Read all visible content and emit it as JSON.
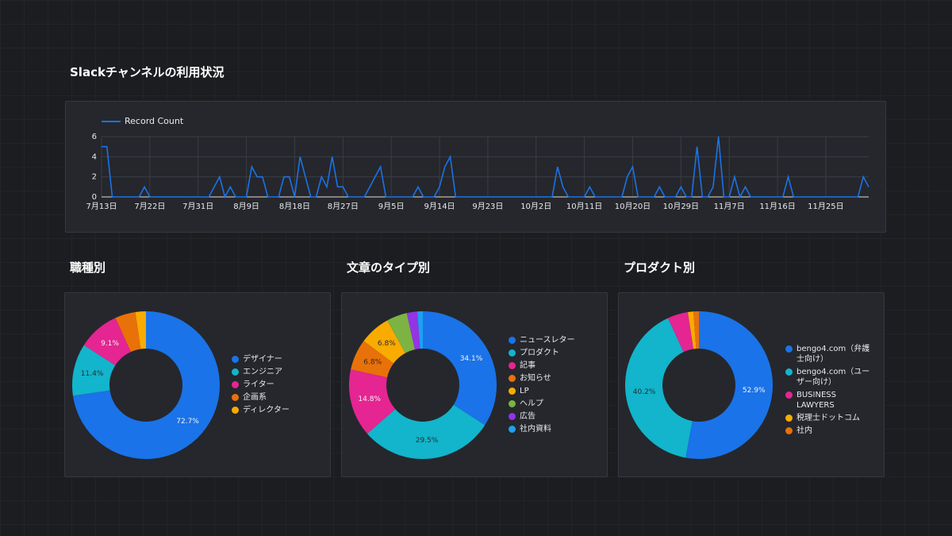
{
  "chart_data": [
    {
      "type": "line",
      "title": "Slackチャンネルの利用状況",
      "categories": [
        "7月13日",
        null,
        null,
        null,
        null,
        null,
        null,
        null,
        null,
        "7月22日",
        null,
        null,
        null,
        null,
        null,
        null,
        null,
        null,
        "7月31日",
        null,
        null,
        null,
        null,
        null,
        null,
        null,
        null,
        "8月9日",
        null,
        null,
        null,
        null,
        null,
        null,
        null,
        null,
        "8月18日",
        null,
        null,
        null,
        null,
        null,
        null,
        null,
        null,
        "8月27日",
        null,
        null,
        null,
        null,
        null,
        null,
        null,
        null,
        "9月5日",
        null,
        null,
        null,
        null,
        null,
        null,
        null,
        null,
        "9月14日",
        null,
        null,
        null,
        null,
        null,
        null,
        null,
        null,
        "9月23日",
        null,
        null,
        null,
        null,
        null,
        null,
        null,
        null,
        "10月2日",
        null,
        null,
        null,
        null,
        null,
        null,
        null,
        null,
        "10月11日",
        null,
        null,
        null,
        null,
        null,
        null,
        null,
        null,
        "10月20日",
        null,
        null,
        null,
        null,
        null,
        null,
        null,
        null,
        "10月29日",
        null,
        null,
        null,
        null,
        null,
        null,
        null,
        null,
        "11月7日",
        null,
        null,
        null,
        null,
        null,
        null,
        null,
        null,
        "11月16日",
        null,
        null,
        null,
        null,
        null,
        null,
        null,
        null,
        "11月25日",
        null,
        null,
        null,
        null,
        null,
        null,
        null,
        null
      ],
      "series": [
        {
          "name": "Record Count",
          "color": "#1a73e8",
          "values": [
            5,
            5,
            0,
            0,
            0,
            0,
            0,
            0,
            1,
            0,
            0,
            0,
            0,
            0,
            0,
            0,
            0,
            0,
            0,
            0,
            0,
            1,
            2,
            0,
            1,
            0,
            0,
            0,
            3,
            2,
            2,
            0,
            0,
            0,
            2,
            2,
            0,
            4,
            2,
            0,
            0,
            2,
            1,
            4,
            1,
            1,
            0,
            0,
            0,
            0,
            1,
            2,
            3,
            0,
            0,
            0,
            0,
            0,
            0,
            1,
            0,
            0,
            0,
            1,
            3,
            4,
            0,
            0,
            0,
            0,
            0,
            0,
            0,
            0,
            0,
            0,
            0,
            0,
            0,
            0,
            0,
            0,
            0,
            0,
            0,
            3,
            1,
            0,
            0,
            0,
            0,
            1,
            0,
            0,
            0,
            0,
            0,
            0,
            2,
            3,
            0,
            0,
            0,
            0,
            1,
            0,
            0,
            0,
            1,
            0,
            0,
            5,
            0,
            0,
            1,
            6,
            0,
            0,
            2,
            0,
            1,
            0,
            0,
            0,
            0,
            0,
            0,
            0,
            2,
            0,
            0,
            0,
            0,
            0,
            0,
            0,
            0,
            0,
            0,
            0,
            0,
            0,
            2,
            1
          ]
        }
      ],
      "ylim": [
        0,
        6
      ],
      "yticks": [
        0,
        2,
        4,
        6
      ],
      "grid": true,
      "legend": "top-left"
    },
    {
      "type": "donut",
      "title": "職種別",
      "categories": [
        "デザイナー",
        "エンジニア",
        "ライター",
        "企画系",
        "ディレクター"
      ],
      "values": [
        72.7,
        11.4,
        9.1,
        4.5,
        2.3
      ],
      "value_labels": [
        "72.7%",
        "11.4%",
        "9.1%",
        null,
        null
      ],
      "colors": [
        "#1a73e8",
        "#12b5cb",
        "#e52592",
        "#e8710a",
        "#f9ab00"
      ],
      "legend": "right"
    },
    {
      "type": "donut",
      "title": "文章のタイプ別",
      "categories": [
        "ニュースレター",
        "プロダクト",
        "記事",
        "お知らせ",
        "LP",
        "ヘルプ",
        "広告",
        "社内資料"
      ],
      "values": [
        34.1,
        29.5,
        14.8,
        6.8,
        6.8,
        4.5,
        2.3,
        1.2
      ],
      "value_labels": [
        "34.1%",
        "29.5%",
        "14.8%",
        "6.8%",
        "6.8%",
        null,
        null,
        null
      ],
      "colors": [
        "#1a73e8",
        "#12b5cb",
        "#e52592",
        "#e8710a",
        "#f9ab00",
        "#7cb342",
        "#9334e6",
        "#1ea0f0"
      ],
      "legend": "right"
    },
    {
      "type": "donut",
      "title": "プロダクト別",
      "categories": [
        "bengo4.com（弁護士向け）",
        "bengo4.com（ユーザー向け）",
        "BUSINESS LAWYERS",
        "税理士ドットコム",
        "社内"
      ],
      "values": [
        52.9,
        40.2,
        4.5,
        1.2,
        1.2
      ],
      "value_labels": [
        "52.9%",
        "40.2%",
        null,
        null,
        null
      ],
      "colors": [
        "#1a73e8",
        "#12b5cb",
        "#e52592",
        "#f9ab00",
        "#e8710a"
      ],
      "legend": "right"
    }
  ]
}
